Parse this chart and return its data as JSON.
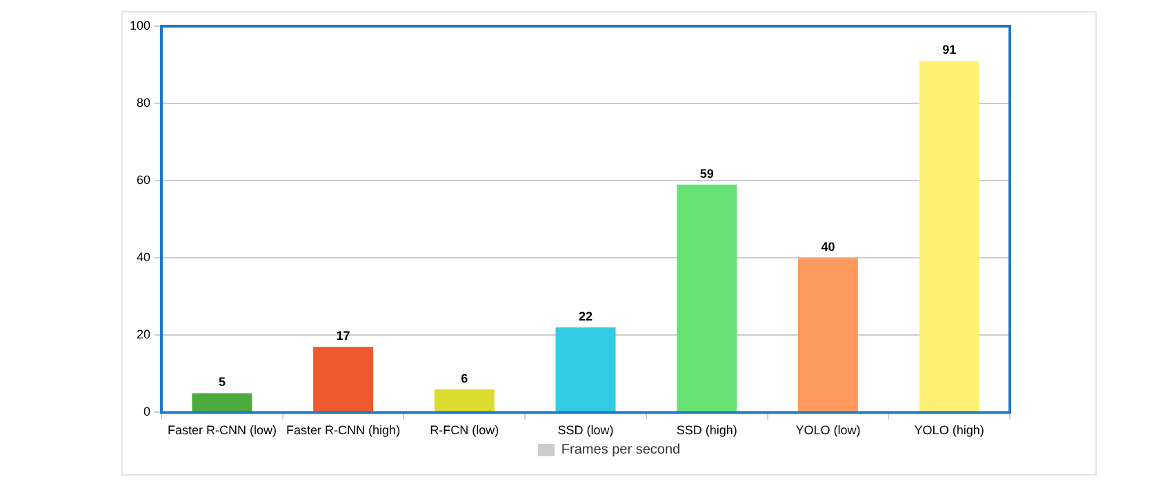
{
  "chart_data": {
    "type": "bar",
    "categories": [
      "Faster R-CNN (low)",
      "Faster R-CNN (high)",
      "R-FCN (low)",
      "SSD (low)",
      "SSD (high)",
      "YOLO (low)",
      "YOLO (high)"
    ],
    "series": [
      {
        "name": "Frames per second",
        "color": "#cccccc",
        "colors": [
          "#4cab3c",
          "#ed5a2e",
          "#dcdc2e",
          "#33cbe3",
          "#66e275",
          "#ff9a5e",
          "#fff176"
        ],
        "values": [
          5,
          17,
          6,
          22,
          59,
          40,
          91
        ]
      }
    ],
    "ylim": [
      0,
      100
    ],
    "yticks": [
      0,
      20,
      40,
      60,
      80,
      100
    ],
    "grid": "y",
    "legend": "bottom",
    "data_labels": true
  }
}
